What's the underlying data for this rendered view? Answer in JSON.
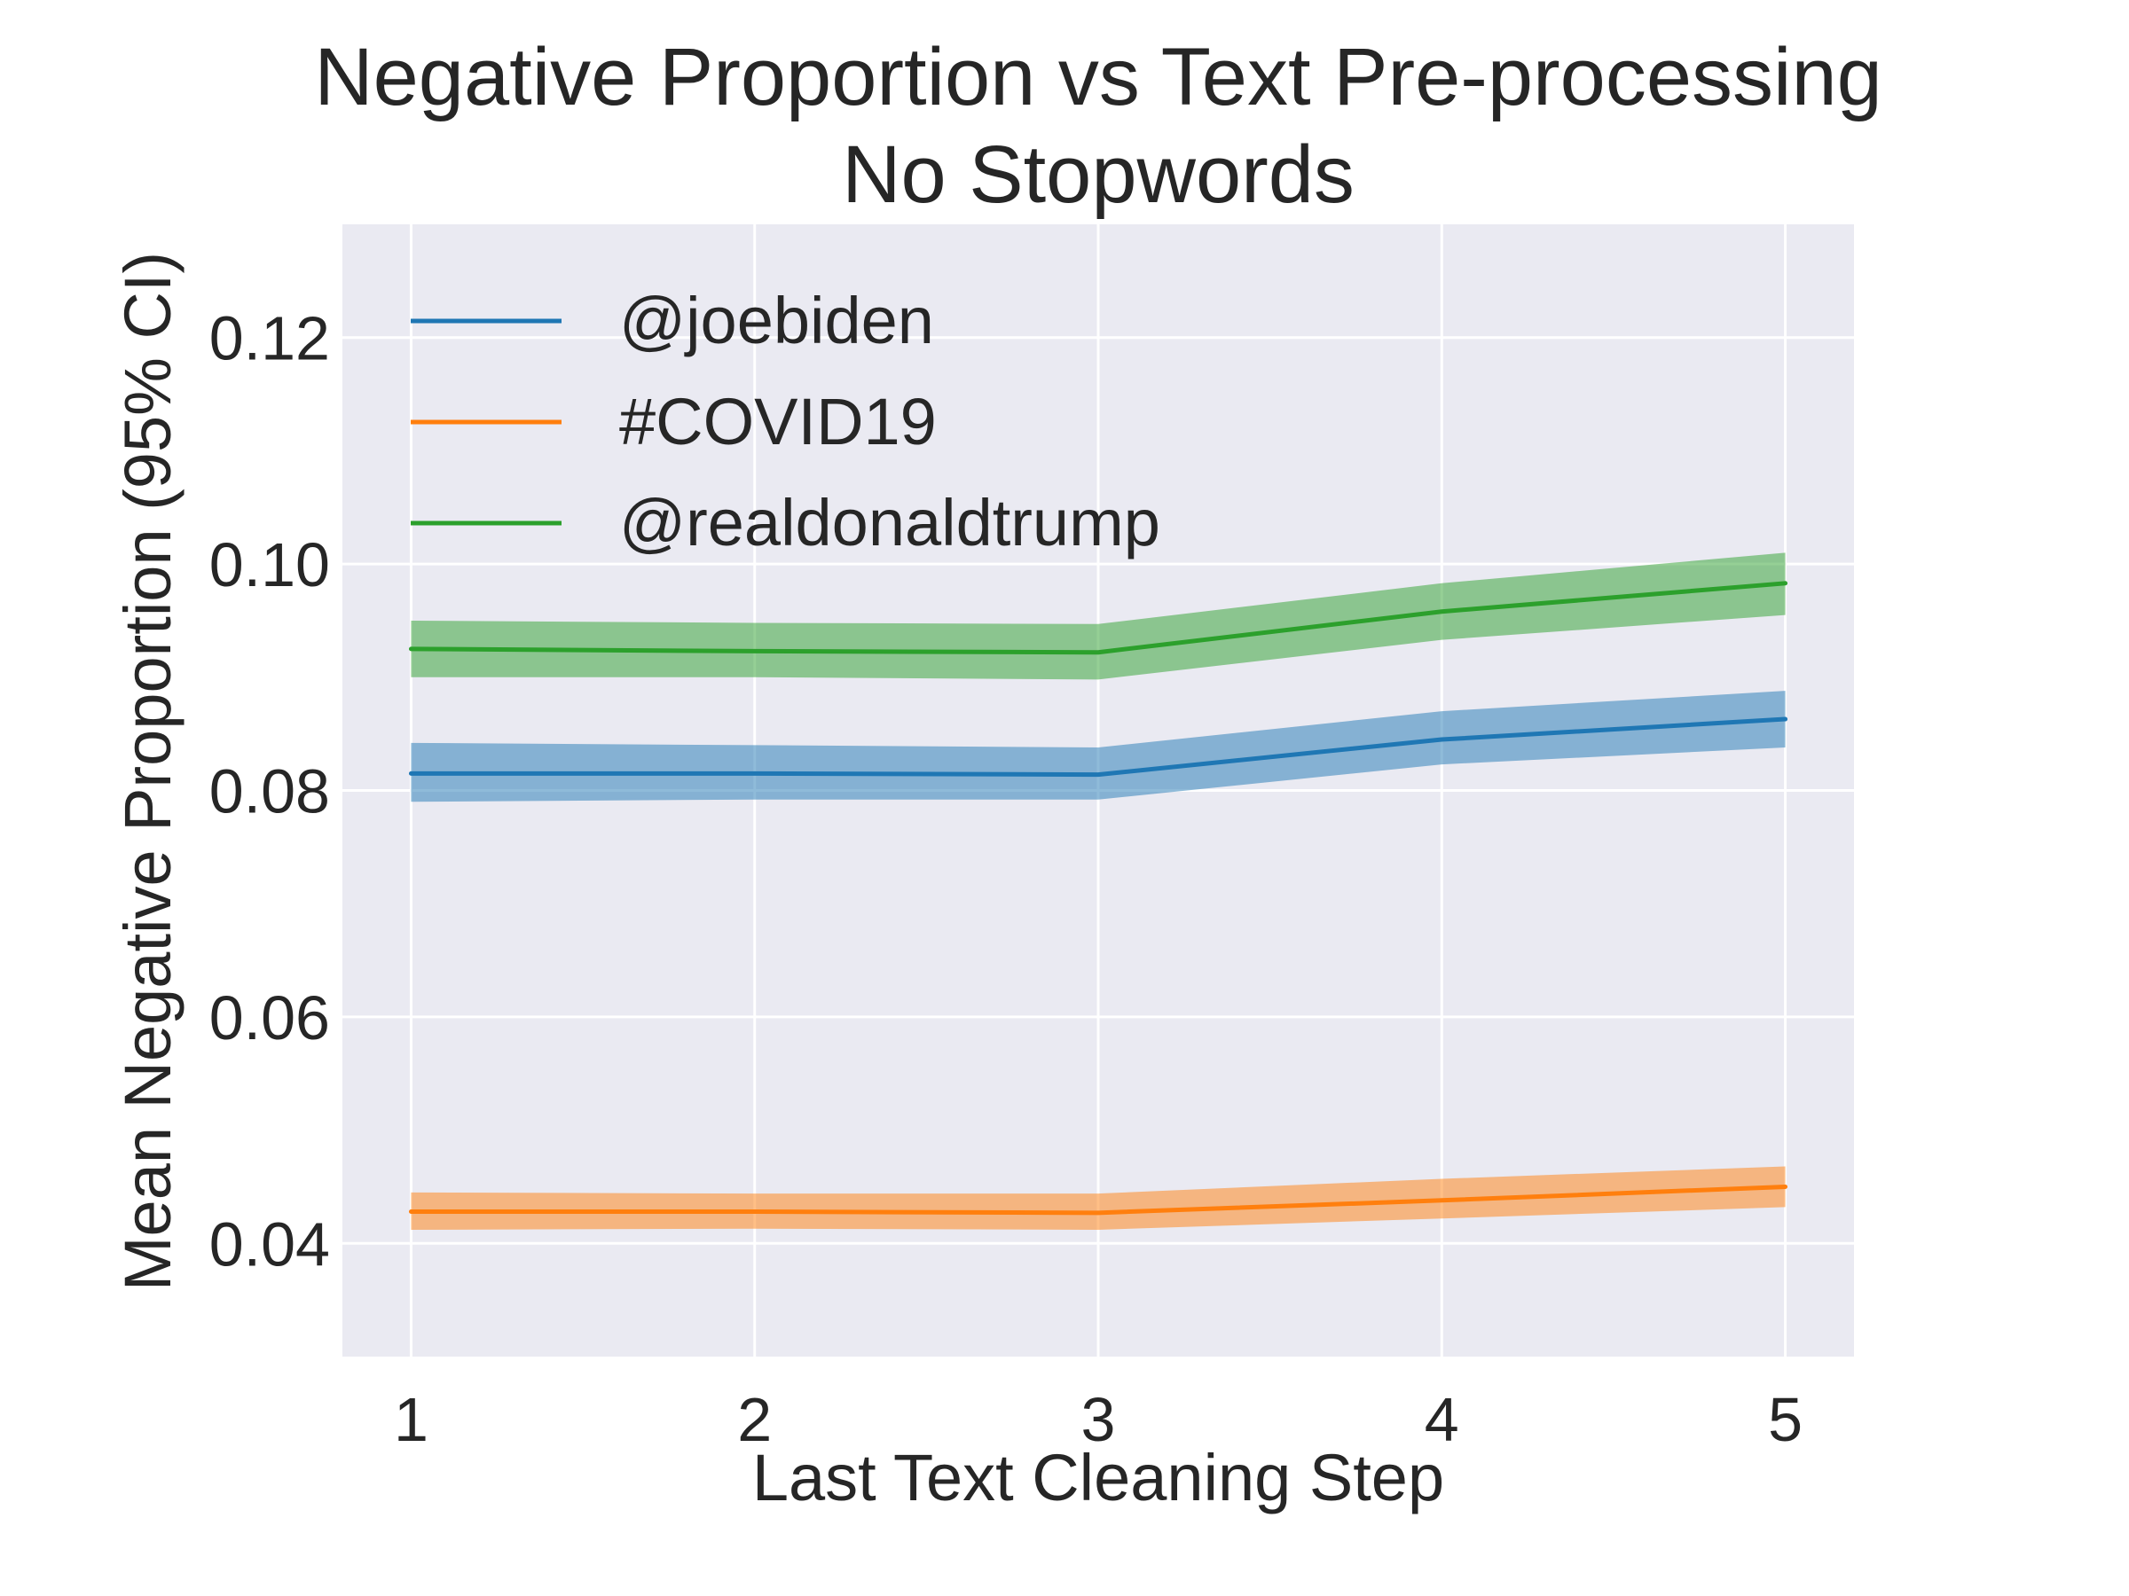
{
  "chart_data": {
    "type": "line",
    "title": "Negative Proportion vs Text Pre-processing",
    "subtitle": "No Stopwords",
    "xlabel": "Last Text Cleaning Step",
    "ylabel": "Mean Negative Proportion (95% CI)",
    "x": [
      1,
      2,
      3,
      4,
      5
    ],
    "xlim": [
      0.8,
      5.2
    ],
    "ylim": [
      0.03,
      0.13
    ],
    "xticks": [
      "1",
      "2",
      "3",
      "4",
      "5"
    ],
    "yticks": [
      "0.04",
      "0.06",
      "0.08",
      "0.10",
      "0.12"
    ],
    "grid": true,
    "legend_position": "upper-left",
    "series": [
      {
        "name": "@joebiden",
        "color": "#1f77b4",
        "values": [
          0.0815,
          0.0815,
          0.0814,
          0.0845,
          0.0863
        ],
        "ci_lower": [
          0.079,
          0.0792,
          0.0792,
          0.0823,
          0.0838
        ],
        "ci_upper": [
          0.0842,
          0.084,
          0.0838,
          0.087,
          0.0888
        ]
      },
      {
        "name": "#COVID19",
        "color": "#ff7f0e",
        "values": [
          0.0428,
          0.0428,
          0.0427,
          0.0438,
          0.045
        ],
        "ci_lower": [
          0.0412,
          0.0413,
          0.0412,
          0.0422,
          0.0432
        ],
        "ci_upper": [
          0.0445,
          0.0444,
          0.0444,
          0.0457,
          0.0468
        ]
      },
      {
        "name": "@realdonaldtrump",
        "color": "#2ca02c",
        "values": [
          0.0925,
          0.0923,
          0.0922,
          0.0958,
          0.0983
        ],
        "ci_lower": [
          0.09,
          0.09,
          0.0898,
          0.0933,
          0.0955
        ],
        "ci_upper": [
          0.095,
          0.0948,
          0.0947,
          0.0983,
          0.101
        ]
      }
    ]
  }
}
